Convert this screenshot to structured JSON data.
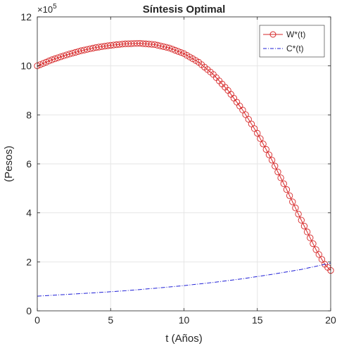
{
  "chart_data": {
    "type": "line",
    "title": "Síntesis Optimal",
    "xlabel": "t (Años)",
    "ylabel": "(Pesos)",
    "xlim": [
      0,
      20
    ],
    "ylim": [
      0,
      12
    ],
    "y_scale_factor_label": {
      "base": "×10",
      "exponent": "5"
    },
    "xticks": [
      0,
      5,
      10,
      15,
      20
    ],
    "yticks": [
      0,
      2,
      4,
      6,
      8,
      10,
      12
    ],
    "grid": true,
    "legend_position": "top-right",
    "series": [
      {
        "name": "W*(t)",
        "color": "#d62728",
        "marker": "circle",
        "line_style": "solid",
        "x_start": 0,
        "x_end": 20,
        "point_count": 101,
        "knots_x": [
          0,
          1,
          2,
          3,
          4,
          5,
          6,
          7,
          8,
          9,
          10,
          11,
          12,
          13,
          14,
          15,
          16,
          17,
          18,
          19,
          19.6,
          20
        ],
        "knots_y": [
          10.0,
          10.25,
          10.45,
          10.62,
          10.75,
          10.84,
          10.9,
          10.92,
          10.87,
          10.73,
          10.5,
          10.15,
          9.65,
          9.0,
          8.2,
          7.25,
          6.15,
          4.95,
          3.7,
          2.5,
          1.9,
          1.65
        ]
      },
      {
        "name": "C*(t)",
        "color": "#1f1fd6",
        "marker": "none",
        "line_style": "dash-dot",
        "x": [
          0,
          2,
          4,
          6,
          8,
          10,
          12,
          14,
          16,
          18,
          20
        ],
        "y": [
          0.6,
          0.67,
          0.74,
          0.82,
          0.92,
          1.03,
          1.16,
          1.31,
          1.49,
          1.69,
          1.95
        ]
      }
    ]
  }
}
